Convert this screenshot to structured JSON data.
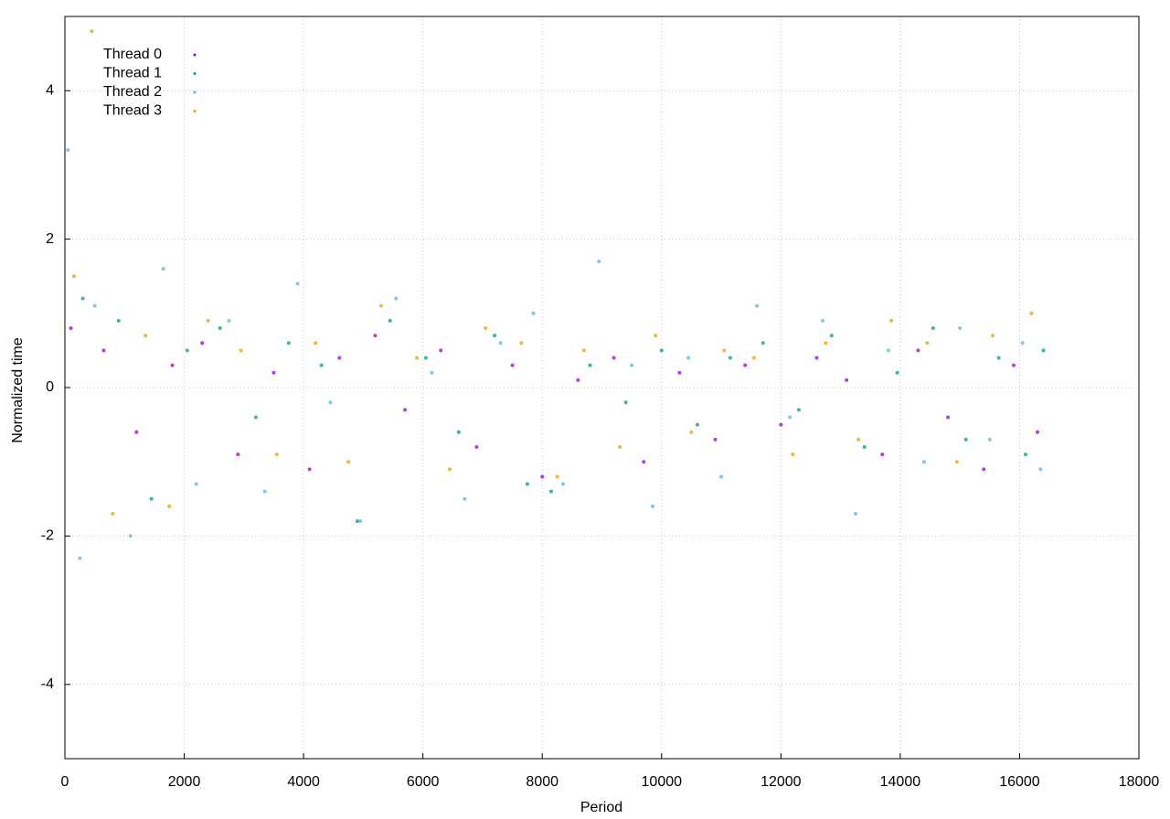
{
  "chart_data": {
    "type": "scatter",
    "x_label": "Period",
    "y_label": "Normalized time",
    "xlim": [
      0,
      18000
    ],
    "ylim": [
      -5,
      5
    ],
    "xticks": [
      0,
      2000,
      4000,
      6000,
      8000,
      10000,
      12000,
      14000,
      16000,
      18000
    ],
    "yticks": [
      -4,
      -2,
      0,
      2,
      4
    ],
    "grid": true,
    "legend": "upper left",
    "series": [
      {
        "name": "Thread 0",
        "color": "#9400d3",
        "x": [
          100,
          650,
          1200,
          1800,
          2300,
          2900,
          3500,
          4100,
          4600,
          5200,
          5700,
          6300,
          6900,
          7500,
          8000,
          8600,
          9200,
          9700,
          10300,
          10900,
          11400,
          12000,
          12600,
          13100,
          13700,
          14300,
          14800,
          15400,
          15900,
          16300
        ],
        "values": [
          0.8,
          0.5,
          -0.6,
          0.3,
          0.6,
          -0.9,
          0.2,
          -1.1,
          0.4,
          0.7,
          -0.3,
          0.5,
          -0.8,
          0.3,
          -1.2,
          0.1,
          0.4,
          -1.0,
          0.2,
          -0.7,
          0.3,
          -0.5,
          0.4,
          0.1,
          -0.9,
          0.5,
          -0.4,
          -1.1,
          0.3,
          -0.6
        ]
      },
      {
        "name": "Thread 1",
        "color": "#009e73",
        "x": [
          300,
          900,
          1450,
          2050,
          2600,
          3200,
          3750,
          4300,
          4900,
          5450,
          6050,
          6600,
          7200,
          7750,
          8150,
          8800,
          9400,
          10000,
          10600,
          11150,
          11700,
          12300,
          12850,
          13400,
          13950,
          14550,
          15100,
          15650,
          16100,
          16400
        ],
        "values": [
          1.2,
          0.9,
          -1.5,
          0.5,
          0.8,
          -0.4,
          0.6,
          0.3,
          -1.8,
          0.9,
          0.4,
          -0.6,
          0.7,
          -1.3,
          -1.4,
          0.3,
          -0.2,
          0.5,
          -0.5,
          0.4,
          0.6,
          -0.3,
          0.7,
          -0.8,
          0.2,
          0.8,
          -0.7,
          0.4,
          -0.9,
          0.5
        ]
      },
      {
        "name": "Thread 2",
        "color": "#56b4e9",
        "x": [
          50,
          250,
          500,
          1100,
          1650,
          2200,
          2750,
          3350,
          3900,
          4450,
          4950,
          5550,
          6150,
          6700,
          7300,
          7850,
          8350,
          8950,
          9500,
          9850,
          10450,
          11000,
          11600,
          12150,
          12700,
          13250,
          13800,
          14400,
          15000,
          15500,
          16050,
          16350
        ],
        "values": [
          3.2,
          -2.3,
          1.1,
          -2.0,
          1.6,
          -1.3,
          0.9,
          -1.4,
          1.4,
          -0.2,
          -1.8,
          1.2,
          0.2,
          -1.5,
          0.6,
          1.0,
          -1.3,
          1.7,
          0.3,
          -1.6,
          0.4,
          -1.2,
          1.1,
          -0.4,
          0.9,
          -1.7,
          0.5,
          -1.0,
          0.8,
          -0.7,
          0.6,
          -1.1
        ]
      },
      {
        "name": "Thread 3",
        "color": "#e69f00",
        "x": [
          150,
          450,
          800,
          1350,
          1750,
          2400,
          2950,
          3550,
          4200,
          4750,
          5300,
          5900,
          6450,
          7050,
          7650,
          8250,
          8700,
          9300,
          9900,
          10500,
          11050,
          11550,
          12200,
          12750,
          13300,
          13850,
          14450,
          14950,
          15550,
          16200
        ],
        "values": [
          1.5,
          4.8,
          -1.7,
          0.7,
          -1.6,
          0.9,
          0.5,
          -0.9,
          0.6,
          -1.0,
          1.1,
          0.4,
          -1.1,
          0.8,
          0.6,
          -1.2,
          0.5,
          -0.8,
          0.7,
          -0.6,
          0.5,
          0.4,
          -0.9,
          0.6,
          -0.7,
          0.9,
          0.6,
          -1.0,
          0.7,
          1.0
        ]
      }
    ]
  }
}
